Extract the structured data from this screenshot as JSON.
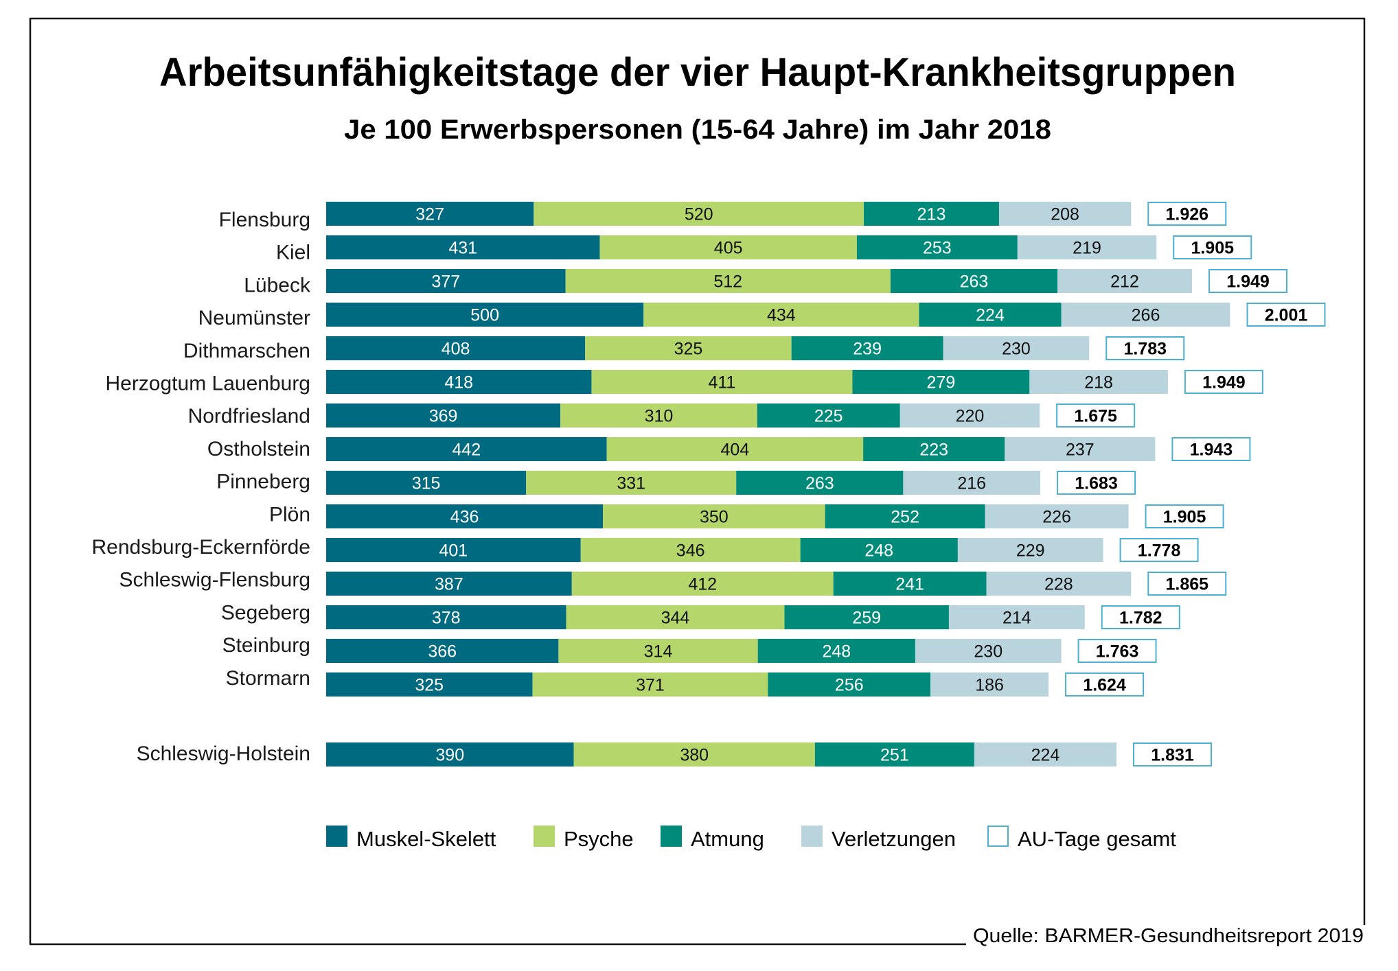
{
  "chart_data": {
    "type": "bar",
    "orientation": "horizontal",
    "stacked": true,
    "title": "Arbeitsunfähigkeitstage der vier Haupt-Krankheitsgruppen",
    "subtitle": "Je 100 Erwerbspersonen (15-64 Jahre) im Jahr 2018",
    "xlabel": "",
    "ylabel": "",
    "grid": false,
    "legend_position": "bottom",
    "source": "Quelle: BARMER-Gesundheitsreport 2019",
    "categories": [
      "Flensburg",
      "Kiel",
      "Lübeck",
      "Neumünster",
      "Dithmarschen",
      "Herzogtum Lauenburg",
      "Nordfriesland",
      "Ostholstein",
      "Pinneberg",
      "Plön",
      "Rendsburg-Eckernförde",
      "Schleswig-Flensburg",
      "Segeberg",
      "Steinburg",
      "Stormarn",
      "Schleswig-Holstein"
    ],
    "series": [
      {
        "name": "Muskel-Skelett",
        "color": "#006a81",
        "text_color": "#ffffff",
        "values": [
          327,
          431,
          377,
          500,
          408,
          418,
          369,
          442,
          315,
          436,
          401,
          387,
          378,
          366,
          325,
          390
        ]
      },
      {
        "name": "Psyche",
        "color": "#b5d66b",
        "text_color": "#111111",
        "values": [
          520,
          405,
          512,
          434,
          325,
          411,
          310,
          404,
          331,
          350,
          346,
          412,
          344,
          314,
          371,
          380
        ]
      },
      {
        "name": "Atmung",
        "color": "#008a79",
        "text_color": "#ffffff",
        "values": [
          213,
          253,
          263,
          224,
          239,
          279,
          225,
          223,
          263,
          252,
          248,
          241,
          259,
          248,
          256,
          251
        ]
      },
      {
        "name": "Verletzungen",
        "color": "#b9d4dd",
        "text_color": "#111111",
        "values": [
          208,
          219,
          212,
          266,
          230,
          218,
          220,
          237,
          216,
          226,
          229,
          228,
          214,
          230,
          186,
          224
        ]
      }
    ],
    "totals": {
      "name": "AU-Tage gesamt",
      "border_color": "#4bb0d3",
      "values": [
        "1.926",
        "1.905",
        "1.949",
        "2.001",
        "1.783",
        "1.949",
        "1.675",
        "1.943",
        "1.683",
        "1.905",
        "1.778",
        "1.865",
        "1.782",
        "1.763",
        "1.624",
        "1.831"
      ]
    },
    "legend": [
      "Muskel-Skelett",
      "Psyche",
      "Atmung",
      "Verletzungen",
      "AU-Tage gesamt"
    ]
  }
}
